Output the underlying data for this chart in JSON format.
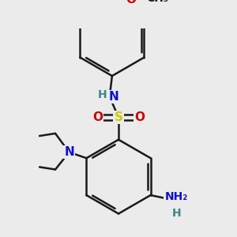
{
  "bg_color": "#ebebeb",
  "bond_color": "#1a1a1a",
  "bond_width": 1.8,
  "colors": {
    "C": "#1a1a1a",
    "H": "#3a8888",
    "N": "#1010cc",
    "O": "#cc0000",
    "S": "#cccc00"
  },
  "font_size": 11,
  "font_size_s": 10
}
